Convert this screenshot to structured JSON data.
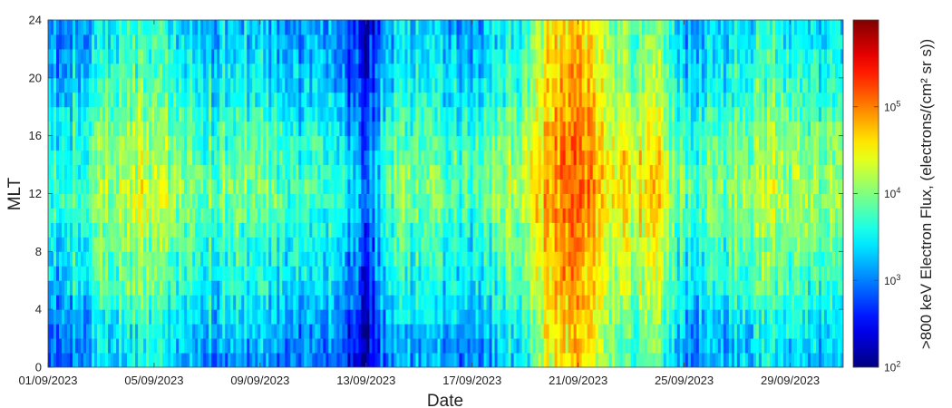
{
  "chart_data": {
    "type": "heatmap",
    "xlabel": "Date",
    "ylabel": "MLT",
    "x_range": [
      "01/09/2023",
      "30/09/2023"
    ],
    "x_ticks": [
      "01/09/2023",
      "05/09/2023",
      "09/09/2023",
      "13/09/2023",
      "17/09/2023",
      "21/09/2023",
      "25/09/2023",
      "29/09/2023"
    ],
    "y_range": [
      0,
      24
    ],
    "y_ticks": [
      0,
      4,
      8,
      12,
      16,
      20,
      24
    ],
    "mlt_bins": 24,
    "colorbar": {
      "label": ">800 keV Electron Flux, (electrons/(cm² sr s))",
      "scale": "log",
      "range": [
        100,
        1000000
      ],
      "ticks": [
        {
          "value": 100,
          "base": "10",
          "exp": "2"
        },
        {
          "value": 1000,
          "base": "10",
          "exp": "3"
        },
        {
          "value": 10000,
          "base": "10",
          "exp": "4"
        },
        {
          "value": 100000,
          "base": "10",
          "exp": "5"
        }
      ],
      "colormap": "jet"
    },
    "daily_log10_flux": [
      3.2,
      3.4,
      3.6,
      3.9,
      3.9,
      3.6,
      3.5,
      3.6,
      3.5,
      3.4,
      3.3,
      3.2,
      2.6,
      3.5,
      3.6,
      3.5,
      3.4,
      3.7,
      3.9,
      4.7,
      4.8,
      4.4,
      4.1,
      4.2,
      3.4,
      3.5,
      3.7,
      3.8,
      3.8,
      3.7
    ],
    "mlt_log10_offset": [
      -0.4,
      -0.35,
      -0.3,
      -0.2,
      -0.1,
      0.0,
      0.05,
      0.1,
      0.15,
      0.2,
      0.3,
      0.35,
      0.4,
      0.35,
      0.3,
      0.25,
      0.2,
      0.1,
      0.0,
      -0.05,
      -0.1,
      -0.15,
      -0.2,
      -0.25
    ]
  }
}
